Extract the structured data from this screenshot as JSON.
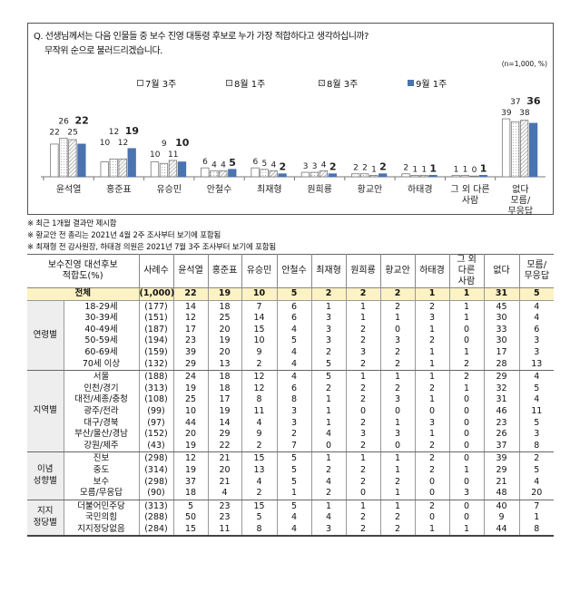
{
  "question": {
    "line1": "Q. 선생님께서는 다음 인물들 중 보수 진영 대통령 후보로 누가 가장 적합하다고 생각하십니까?",
    "line2": "무작위 순으로 불러드리겠습니다.",
    "sample_note": "(n=1,000,  %)"
  },
  "chart_data": {
    "type": "bar",
    "categories": [
      "윤석열",
      "홍준표",
      "유승민",
      "안철수",
      "최재형",
      "원희룡",
      "황교안",
      "하태경",
      "그 외 다른 사람",
      "없다 모름/ 무응답"
    ],
    "category_lines": [
      [
        "윤석열"
      ],
      [
        "홍준표"
      ],
      [
        "유승민"
      ],
      [
        "안철수"
      ],
      [
        "최재형"
      ],
      [
        "원희룡"
      ],
      [
        "황교안"
      ],
      [
        "하태경"
      ],
      [
        "그 외 다른",
        "사람"
      ],
      [
        "없다",
        "모름/",
        "무응답"
      ]
    ],
    "series": [
      {
        "name": "7월 3주",
        "pattern": "blank",
        "color": "#ffffff",
        "values": [
          22,
          10,
          10,
          6,
          6,
          3,
          2,
          2,
          1,
          39
        ]
      },
      {
        "name": "8월 1주",
        "pattern": "dotted",
        "color": "#ffffff",
        "values": [
          26,
          12,
          9,
          4,
          5,
          3,
          2,
          1,
          1,
          37
        ]
      },
      {
        "name": "8월 3주",
        "pattern": "hatched",
        "color": "#ffffff",
        "values": [
          25,
          12,
          11,
          4,
          4,
          4,
          1,
          1,
          0,
          38
        ]
      },
      {
        "name": "9월 1주",
        "pattern": "solid",
        "color": "#4a73b0",
        "values": [
          22,
          19,
          10,
          5,
          2,
          2,
          2,
          1,
          1,
          36
        ]
      }
    ],
    "ylim": [
      0,
      40
    ]
  },
  "notes": [
    "※ 최근 1개월 결과만 제시함",
    "※ 황교안 전 총리는 2021년 4월 2주 조사부터 보기에 포함됨",
    "※ 최재형 전 감사원장, 하태경 의원은 2021년 7월 3주 조사부터 보기에 포함됨"
  ],
  "table": {
    "corner": [
      "보수진영 대선후보",
      "적합도(%)"
    ],
    "columns": [
      "사례수",
      "윤석열",
      "홍준표",
      "유승민",
      "안철수",
      "최재형",
      "원희룡",
      "황교안",
      "하태경",
      "그 외 다른 사람",
      "없다",
      "모름/ 무응답"
    ],
    "total": {
      "label": "전체",
      "values": [
        "(1,000)",
        "22",
        "19",
        "10",
        "5",
        "2",
        "2",
        "2",
        "1",
        "1",
        "31",
        "5"
      ]
    },
    "groups": [
      {
        "label": "연령별",
        "rows": [
          {
            "label": "18-29세",
            "values": [
              "(177)",
              "14",
              "18",
              "7",
              "6",
              "1",
              "1",
              "2",
              "2",
              "1",
              "45",
              "4"
            ]
          },
          {
            "label": "30-39세",
            "values": [
              "(151)",
              "12",
              "25",
              "14",
              "6",
              "3",
              "1",
              "1",
              "3",
              "1",
              "30",
              "4"
            ]
          },
          {
            "label": "40-49세",
            "values": [
              "(187)",
              "17",
              "20",
              "15",
              "4",
              "3",
              "2",
              "0",
              "1",
              "0",
              "33",
              "6"
            ]
          },
          {
            "label": "50-59세",
            "values": [
              "(194)",
              "23",
              "19",
              "10",
              "5",
              "3",
              "2",
              "3",
              "2",
              "0",
              "30",
              "3"
            ]
          },
          {
            "label": "60-69세",
            "values": [
              "(159)",
              "39",
              "20",
              "9",
              "4",
              "2",
              "3",
              "2",
              "1",
              "1",
              "17",
              "3"
            ]
          },
          {
            "label": "70세 이상",
            "values": [
              "(132)",
              "29",
              "13",
              "2",
              "4",
              "5",
              "2",
              "2",
              "1",
              "2",
              "28",
              "13"
            ]
          }
        ]
      },
      {
        "label": "지역별",
        "rows": [
          {
            "label": "서울",
            "values": [
              "(188)",
              "24",
              "18",
              "12",
              "4",
              "5",
              "1",
              "1",
              "1",
              "2",
              "29",
              "4"
            ]
          },
          {
            "label": "인천/경기",
            "values": [
              "(313)",
              "19",
              "18",
              "12",
              "6",
              "2",
              "2",
              "2",
              "2",
              "1",
              "32",
              "5"
            ]
          },
          {
            "label": "대전/세종/충청",
            "values": [
              "(108)",
              "25",
              "17",
              "8",
              "8",
              "1",
              "2",
              "3",
              "1",
              "0",
              "31",
              "4"
            ]
          },
          {
            "label": "광주/전라",
            "values": [
              "(99)",
              "10",
              "19",
              "11",
              "3",
              "1",
              "0",
              "0",
              "0",
              "0",
              "46",
              "11"
            ]
          },
          {
            "label": "대구/경북",
            "values": [
              "(97)",
              "44",
              "14",
              "4",
              "3",
              "1",
              "2",
              "1",
              "3",
              "0",
              "23",
              "5"
            ]
          },
          {
            "label": "부산/울산/경남",
            "values": [
              "(152)",
              "20",
              "29",
              "9",
              "2",
              "4",
              "3",
              "3",
              "1",
              "0",
              "26",
              "3"
            ]
          },
          {
            "label": "강원/제주",
            "values": [
              "(43)",
              "19",
              "22",
              "2",
              "7",
              "0",
              "2",
              "0",
              "2",
              "0",
              "37",
              "8"
            ]
          }
        ]
      },
      {
        "label": "이념 성향별",
        "rows": [
          {
            "label": "진보",
            "values": [
              "(298)",
              "12",
              "21",
              "15",
              "5",
              "1",
              "1",
              "1",
              "2",
              "0",
              "39",
              "2"
            ]
          },
          {
            "label": "중도",
            "values": [
              "(314)",
              "19",
              "20",
              "13",
              "5",
              "2",
              "2",
              "1",
              "2",
              "1",
              "29",
              "5"
            ]
          },
          {
            "label": "보수",
            "values": [
              "(298)",
              "37",
              "21",
              "4",
              "5",
              "4",
              "2",
              "2",
              "0",
              "0",
              "21",
              "4"
            ]
          },
          {
            "label": "모름/무응답",
            "values": [
              "(90)",
              "18",
              "4",
              "2",
              "1",
              "2",
              "0",
              "1",
              "0",
              "3",
              "48",
              "20"
            ]
          }
        ]
      },
      {
        "label": "지지 정당별",
        "rows": [
          {
            "label": "더불어민주당",
            "values": [
              "(313)",
              "5",
              "23",
              "15",
              "5",
              "1",
              "1",
              "1",
              "2",
              "0",
              "40",
              "7"
            ]
          },
          {
            "label": "국민의힘",
            "values": [
              "(288)",
              "50",
              "23",
              "5",
              "4",
              "4",
              "2",
              "2",
              "0",
              "0",
              "9",
              "1"
            ]
          },
          {
            "label": "지지정당없음",
            "values": [
              "(284)",
              "15",
              "11",
              "8",
              "4",
              "3",
              "2",
              "2",
              "1",
              "1",
              "44",
              "8"
            ]
          }
        ]
      }
    ]
  }
}
